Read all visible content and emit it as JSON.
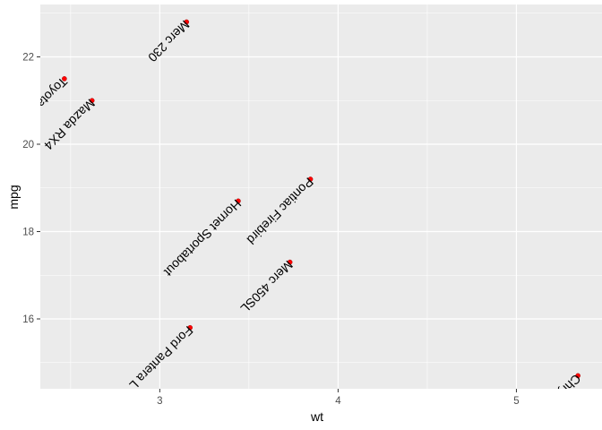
{
  "chart_data": {
    "type": "scatter",
    "xlabel": "wt",
    "ylabel": "mpg",
    "xlim": [
      2.33,
      5.48
    ],
    "ylim": [
      14.4,
      23.2
    ],
    "x_ticks": [
      3,
      4,
      5
    ],
    "y_ticks": [
      16,
      18,
      20,
      22
    ],
    "x_tick_labels": [
      "3",
      "4",
      "5"
    ],
    "y_tick_labels": [
      "16",
      "18",
      "20",
      "22"
    ],
    "grid": true,
    "colors": {
      "panel": "#ebebeb",
      "grid": "#ffffff",
      "point": "#ff0000",
      "text": "#000000"
    },
    "points": [
      {
        "x": 3.15,
        "y": 22.8,
        "label": "Merc 230"
      },
      {
        "x": 2.465,
        "y": 21.5,
        "label": "Toyota Corona"
      },
      {
        "x": 2.62,
        "y": 21.0,
        "label": "Mazda RX4"
      },
      {
        "x": 3.845,
        "y": 19.2,
        "label": "Pontiac Firebird"
      },
      {
        "x": 3.44,
        "y": 18.7,
        "label": "Hornet Sportabout"
      },
      {
        "x": 3.73,
        "y": 17.3,
        "label": "Merc 450SL"
      },
      {
        "x": 3.17,
        "y": 15.8,
        "label": "Ford Pantera L"
      },
      {
        "x": 5.345,
        "y": 14.7,
        "label": "Chrysler Imperial"
      }
    ]
  }
}
